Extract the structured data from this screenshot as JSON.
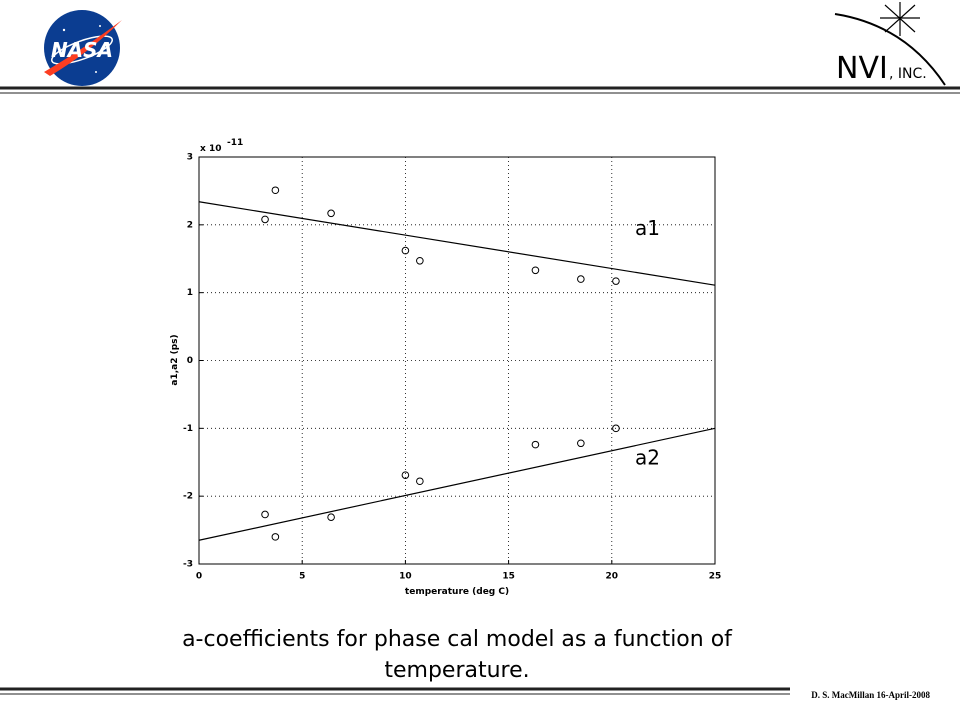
{
  "header": {
    "logo_left": "NASA",
    "logo_right": "NVI",
    "logo_right_suffix": ", INC."
  },
  "chart_data": {
    "type": "scatter",
    "x_label": "temperature (deg C)",
    "y_label": "a1,a2 (ps)",
    "y_multiplier": {
      "base": "x 10",
      "exponent": "-11"
    },
    "xlim": [
      0,
      25
    ],
    "xticks": [
      0,
      5,
      10,
      15,
      20,
      25
    ],
    "ylim": [
      -3,
      3
    ],
    "yticks": [
      -3,
      -2,
      -1,
      0,
      1,
      2,
      3
    ],
    "grid": true,
    "series": [
      {
        "name": "a1",
        "color": "#000000",
        "x": [
          3.2,
          3.7,
          6.4,
          10.0,
          10.7,
          16.3,
          18.5,
          20.2
        ],
        "values": [
          2.08,
          2.51,
          2.17,
          1.62,
          1.47,
          1.33,
          1.2,
          1.17
        ],
        "fit": {
          "x": [
            0,
            25
          ],
          "values": [
            2.34,
            1.11
          ]
        }
      },
      {
        "name": "a2",
        "color": "#000000",
        "x": [
          3.2,
          3.7,
          6.4,
          10.0,
          10.7,
          16.3,
          18.5,
          20.2
        ],
        "values": [
          -2.27,
          -2.6,
          -2.31,
          -1.69,
          -1.78,
          -1.24,
          -1.22,
          -1.0
        ],
        "fit": {
          "x": [
            0,
            25
          ],
          "values": [
            -2.65,
            -1.0
          ]
        }
      }
    ]
  },
  "caption": {
    "lines": [
      "a-coefficients for phase cal model as a function of",
      "temperature."
    ]
  },
  "footer": "D. S. MacMillan 16-April-2008"
}
